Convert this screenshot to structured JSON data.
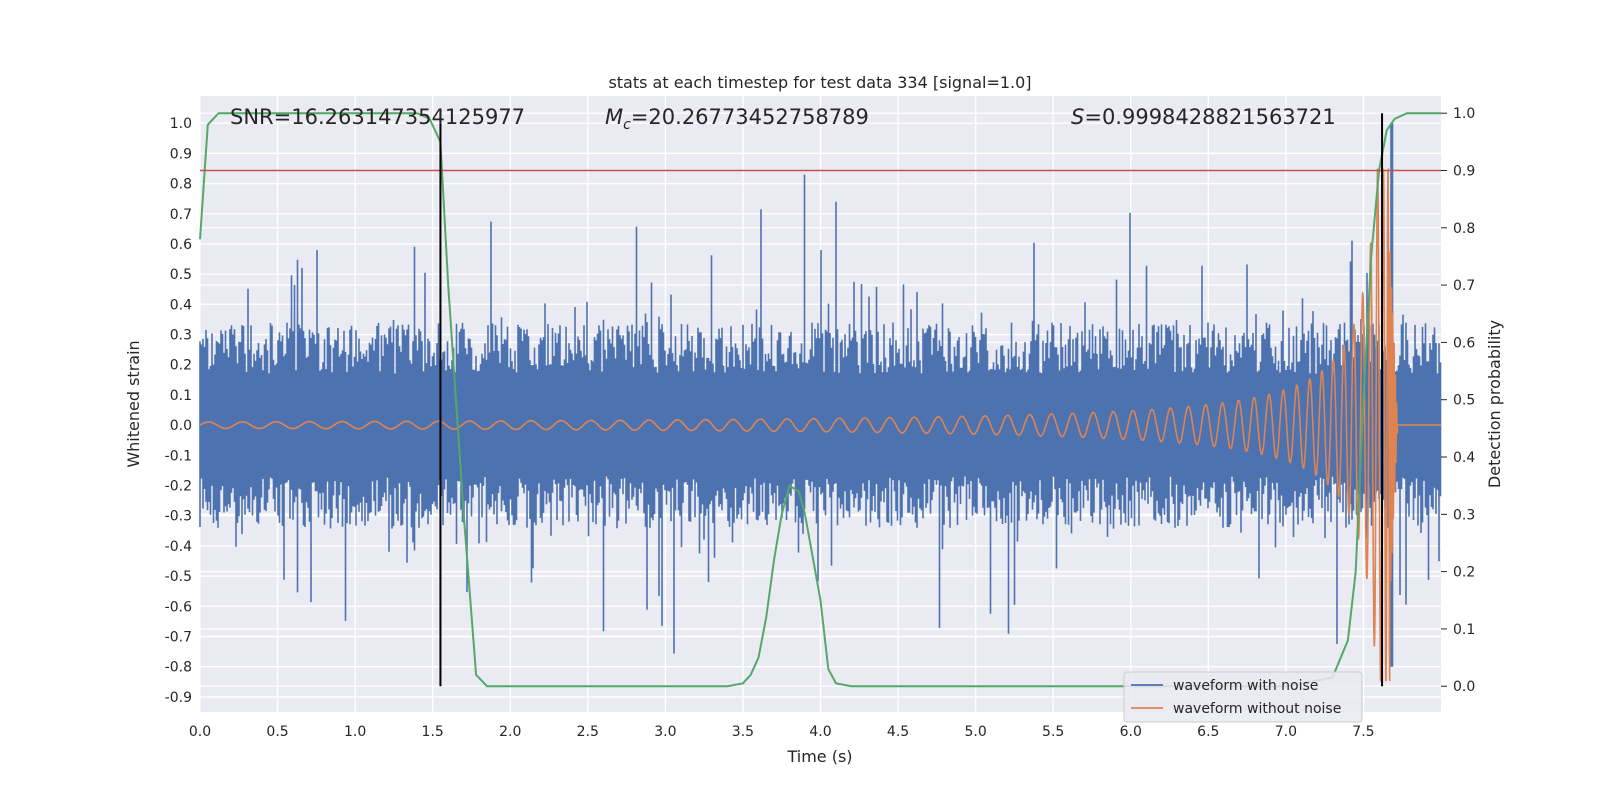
{
  "chart_data": {
    "type": "line",
    "title": "stats at each timestep for test data 334 [signal=1.0]",
    "xlabel": "Time (s)",
    "ylabel": "Whitened strain",
    "ylabel_right": "Detection probability",
    "xlim": [
      0.0,
      8.0
    ],
    "ylim": [
      -0.95,
      1.09
    ],
    "ylim_right": [
      -0.045,
      1.03
    ],
    "x_ticks": [
      "0.0",
      "0.5",
      "1.0",
      "1.5",
      "2.0",
      "2.5",
      "3.0",
      "3.5",
      "4.0",
      "4.5",
      "5.0",
      "5.5",
      "6.0",
      "6.5",
      "7.0",
      "7.5"
    ],
    "y_ticks": [
      "1.0",
      "0.9",
      "0.8",
      "0.7",
      "0.6",
      "0.5",
      "0.4",
      "0.3",
      "0.2",
      "0.1",
      "0.0",
      "-0.1",
      "-0.2",
      "-0.3",
      "-0.4",
      "-0.5",
      "-0.6",
      "-0.7",
      "-0.8",
      "-0.9"
    ],
    "y_ticks_right": [
      "1.0",
      "0.9",
      "0.8",
      "0.7",
      "0.6",
      "0.5",
      "0.4",
      "0.3",
      "0.2",
      "0.1",
      "0.0"
    ],
    "grid": true,
    "legend_position": "lower-right",
    "annotations": {
      "snr": "SNR=16.263147354125977",
      "mc_symbol": "M",
      "mc_sub": "c",
      "mc_value": "=20.26773452758789",
      "s_symbol": "S",
      "s_value": "=0.9998428821563721"
    },
    "series": [
      {
        "name": "waveform with noise",
        "color": "#4c72b0",
        "style": "noisy strain, envelope about ±0.3 with spikes to ±0.8"
      },
      {
        "name": "waveform without noise",
        "color": "#dd8452",
        "style": "chirp, amplitude 0.01 at t=0 growing to 1.0 at merger t=7.67 s"
      },
      {
        "name": "",
        "color": "#55a868",
        "axis": "right",
        "x": [
          0.0,
          0.05,
          0.12,
          0.5,
          1.0,
          1.4,
          1.48,
          1.55,
          1.6,
          1.7,
          1.78,
          1.85,
          2.0,
          3.0,
          3.4,
          3.5,
          3.55,
          3.6,
          3.65,
          3.7,
          3.75,
          3.8,
          3.86,
          3.9,
          4.0,
          4.05,
          4.1,
          4.2,
          5.0,
          6.0,
          7.0,
          7.3,
          7.4,
          7.45,
          7.5,
          7.55,
          7.6,
          7.65,
          7.7,
          7.78,
          8.0
        ],
        "y": [
          0.78,
          0.98,
          1.0,
          1.0,
          1.0,
          1.0,
          0.99,
          0.95,
          0.7,
          0.3,
          0.02,
          0.0,
          0.0,
          0.0,
          0.0,
          0.005,
          0.02,
          0.05,
          0.12,
          0.22,
          0.3,
          0.35,
          0.34,
          0.3,
          0.15,
          0.03,
          0.005,
          0.0,
          0.0,
          0.0,
          0.0,
          0.015,
          0.08,
          0.2,
          0.5,
          0.75,
          0.9,
          0.97,
          0.99,
          1.0,
          1.0
        ]
      }
    ],
    "threshold_line": {
      "value": 0.9,
      "axis": "right",
      "color": "#c44e52"
    },
    "vertical_lines": [
      1.55,
      7.62
    ]
  }
}
